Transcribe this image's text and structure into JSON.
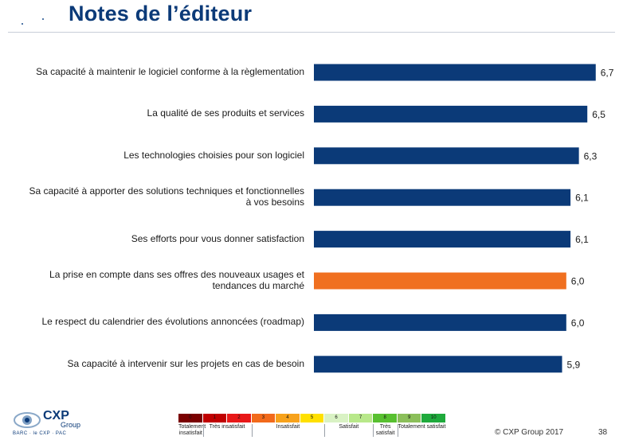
{
  "header": {
    "title": "Notes de l’éditeur"
  },
  "chart_data": {
    "type": "bar",
    "orientation": "horizontal",
    "categories": [
      "Sa capacité à maintenir le logiciel conforme à la règlementation",
      "La qualité de ses produits et services",
      "Les technologies choisies pour son logiciel",
      "Sa capacité à apporter des solutions techniques et fonctionnelles à vos besoins",
      "Ses efforts pour vous donner satisfaction",
      "La prise en compte dans ses offres des nouveaux usages et tendances du marché",
      "Le respect du calendrier des évolutions annoncées (roadmap)",
      "Sa capacité à intervenir sur les projets en cas de besoin"
    ],
    "label_lines": [
      [
        "Sa capacité à maintenir le logiciel conforme à la règlementation"
      ],
      [
        "La qualité de ses produits et services"
      ],
      [
        "Les technologies choisies pour son logiciel"
      ],
      [
        "Sa capacité à apporter des solutions techniques et fonctionnelles",
        "à vos besoins"
      ],
      [
        "Ses efforts pour vous donner satisfaction"
      ],
      [
        "La prise en compte dans ses offres des nouveaux usages et",
        "tendances du marché"
      ],
      [
        "Le respect du calendrier des évolutions annoncées (roadmap)"
      ],
      [
        "Sa capacité à intervenir sur les projets en cas de besoin"
      ]
    ],
    "values": [
      6.7,
      6.5,
      6.3,
      6.1,
      6.1,
      6.0,
      6.0,
      5.9
    ],
    "value_labels": [
      "6,7",
      "6,5",
      "6,3",
      "6,1",
      "6,1",
      "6,0",
      "6,0",
      "5,9"
    ],
    "highlight_index": 5,
    "colors": {
      "bar": "#0b3a78",
      "highlight": "#f07020"
    }
  },
  "scale": {
    "cells": [
      {
        "label": "0",
        "color": "#7a0000"
      },
      {
        "label": "1",
        "color": "#c00000"
      },
      {
        "label": "2",
        "color": "#e81818"
      },
      {
        "label": "3",
        "color": "#f26a1b"
      },
      {
        "label": "4",
        "color": "#f7a21b"
      },
      {
        "label": "5",
        "color": "#ffe000"
      },
      {
        "label": "6",
        "color": "#d9f2c4"
      },
      {
        "label": "7",
        "color": "#b8e88a"
      },
      {
        "label": "8",
        "color": "#58c030"
      },
      {
        "label": "9",
        "color": "#8bbf5a"
      },
      {
        "label": "10",
        "color": "#1faa3c"
      }
    ],
    "categories": [
      {
        "text": "Totalement insatisfait",
        "from": 0,
        "to": 1
      },
      {
        "text": "Très insatisfait",
        "from": 1,
        "to": 3
      },
      {
        "text": "Insatisfait",
        "from": 3,
        "to": 6
      },
      {
        "text": "Satisfait",
        "from": 6,
        "to": 8
      },
      {
        "text": "Très satisfait",
        "from": 8,
        "to": 9
      },
      {
        "text": "Totalement satisfait",
        "from": 9,
        "to": 11
      }
    ]
  },
  "footer": {
    "logo_big": "CXP",
    "logo_small": "Group",
    "logo_sub": "BARC · le CXP · PAC",
    "copyright": "© CXP Group  2017",
    "page": "38"
  }
}
